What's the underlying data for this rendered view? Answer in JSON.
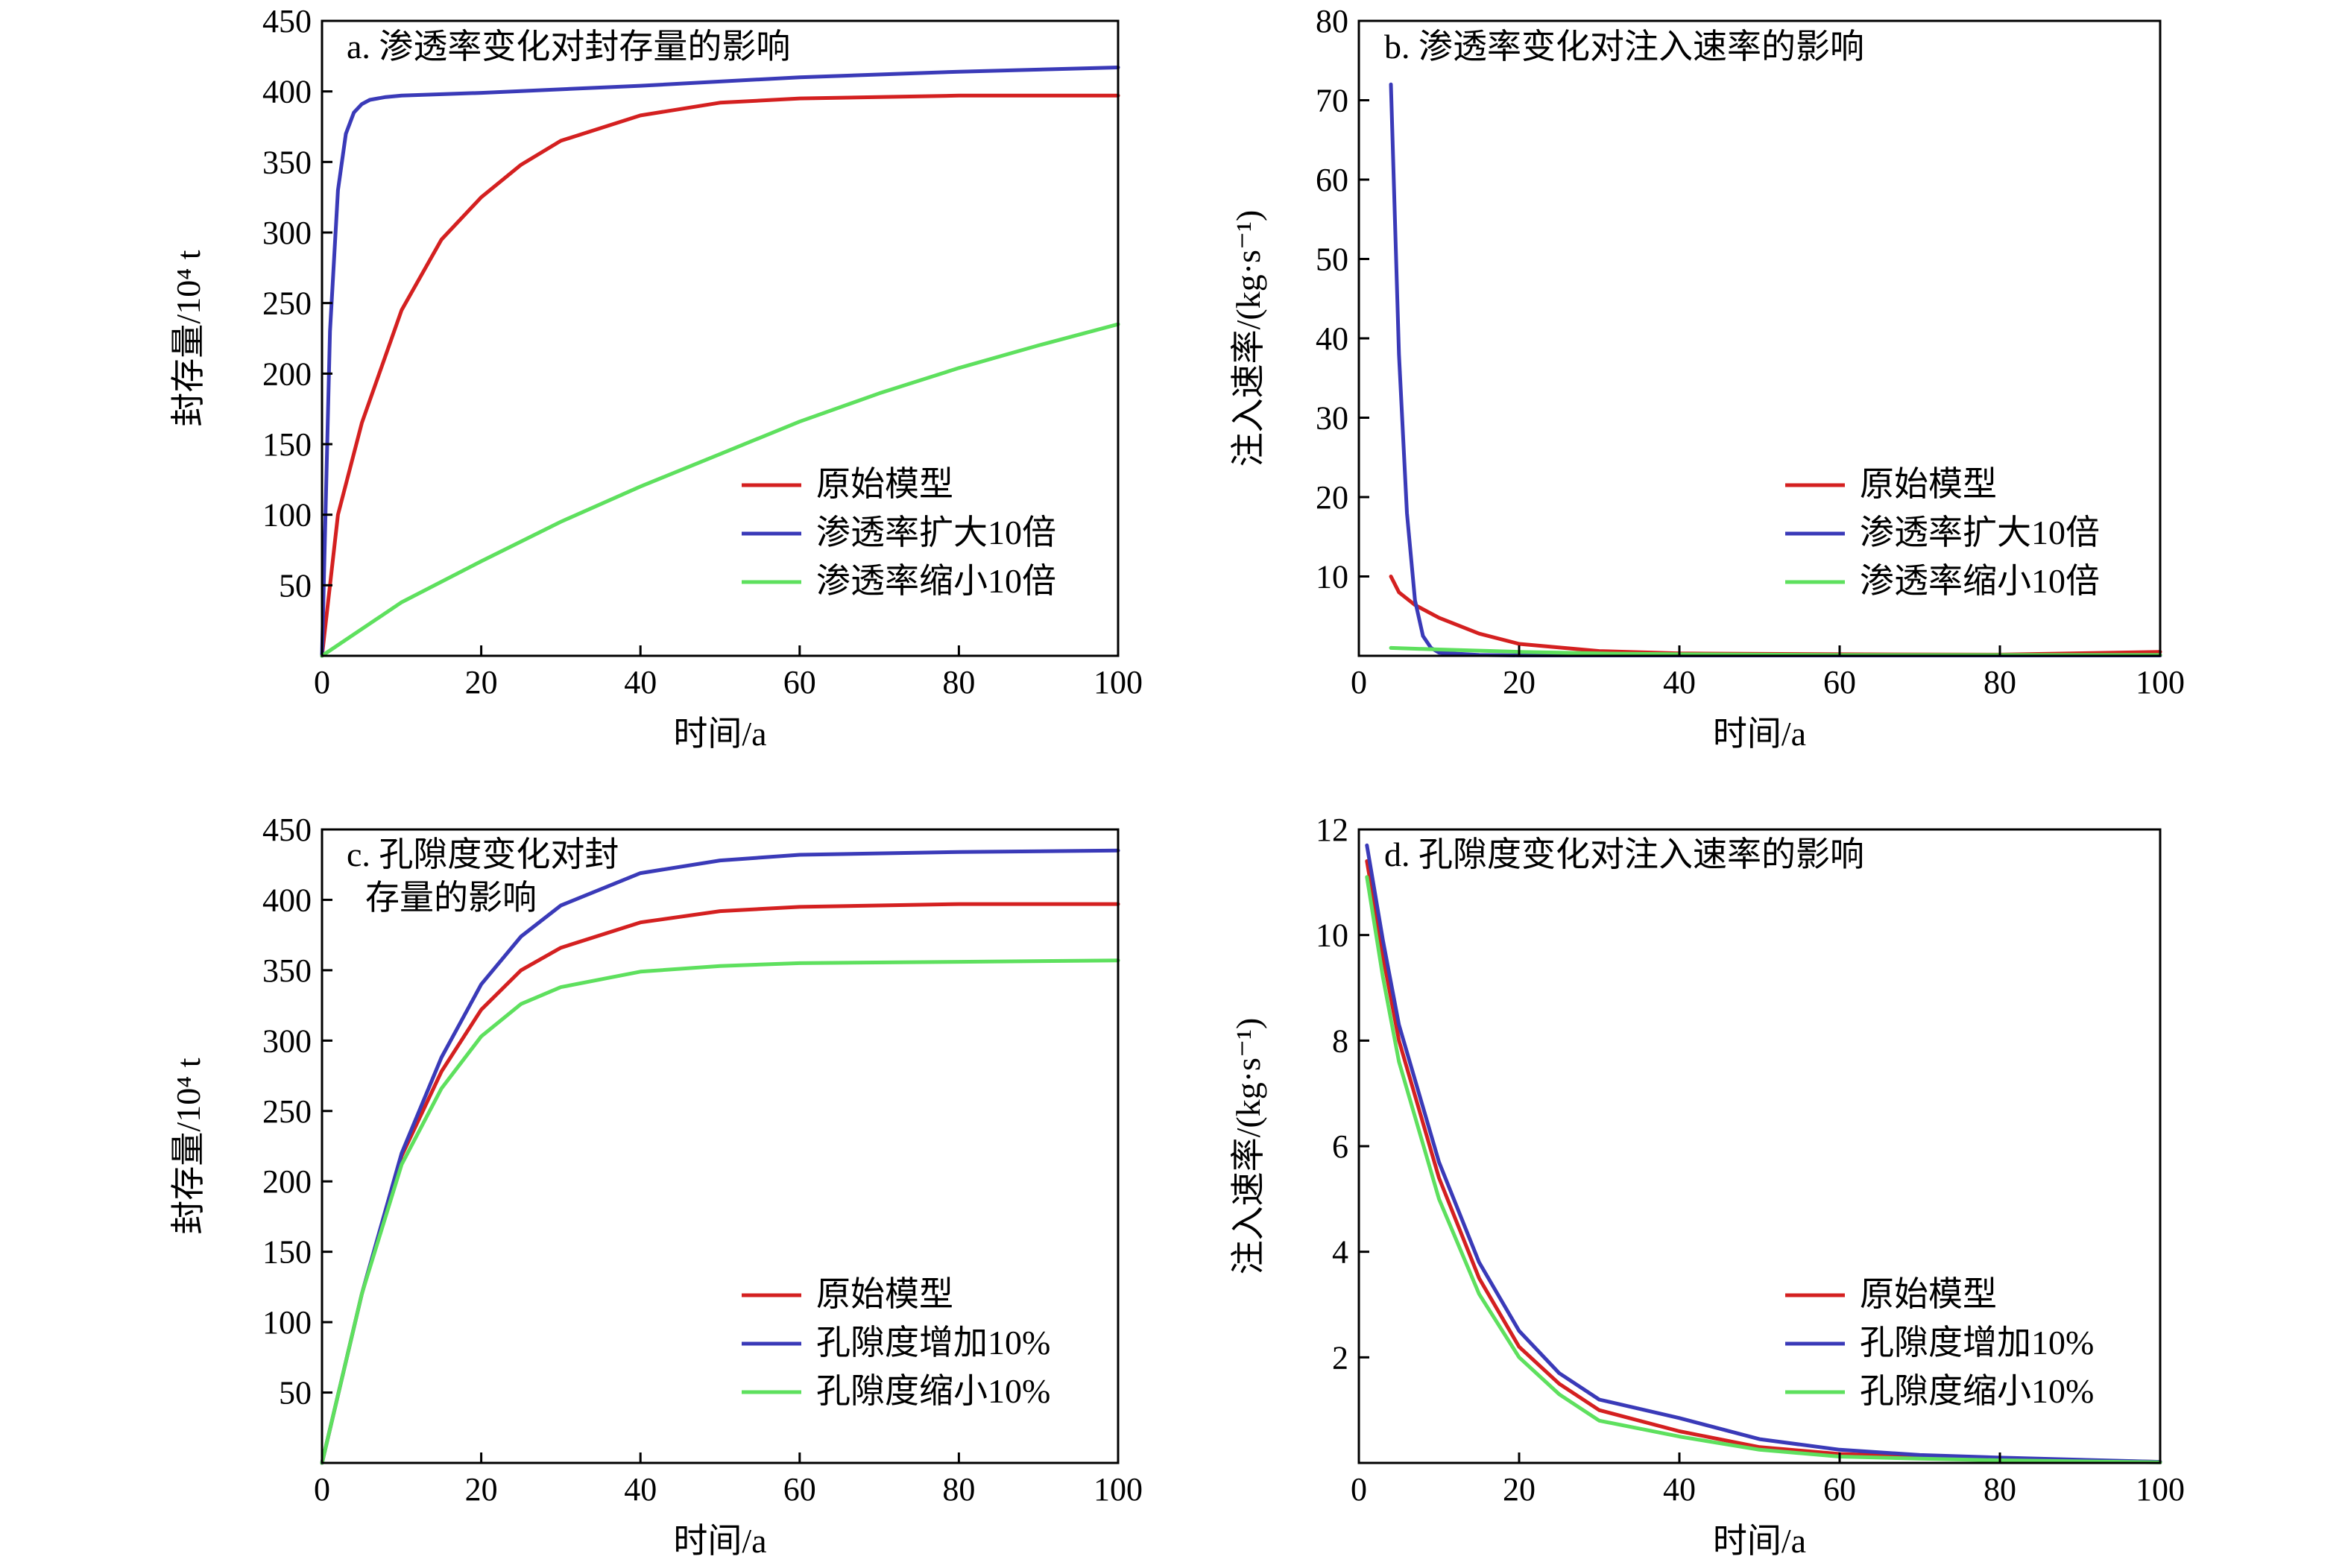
{
  "colors": {
    "original": "#d42020",
    "increase": "#3a3ab8",
    "decrease": "#5ee05e"
  },
  "chart_data": [
    {
      "type": "line",
      "title": "a. 渗透率变化对封存量的影响",
      "xlabel": "时间/a",
      "ylabel": "封存量/10⁴ t",
      "xlim": [
        0,
        100
      ],
      "ylim": [
        0,
        450
      ],
      "xticks": [
        0,
        20,
        40,
        60,
        80,
        100
      ],
      "yticks": [
        50,
        100,
        150,
        200,
        250,
        300,
        350,
        400,
        450
      ],
      "legend_position": "lower-right",
      "series": [
        {
          "name": "原始模型",
          "color": "#d42020",
          "x": [
            0,
            2,
            5,
            10,
            15,
            20,
            25,
            30,
            40,
            50,
            60,
            80,
            100
          ],
          "y": [
            0,
            100,
            165,
            245,
            295,
            325,
            348,
            365,
            383,
            392,
            395,
            397,
            397
          ]
        },
        {
          "name": "渗透率扩大10倍",
          "color": "#3a3ab8",
          "x": [
            0,
            1,
            2,
            3,
            4,
            5,
            6,
            8,
            10,
            20,
            40,
            60,
            80,
            100
          ],
          "y": [
            0,
            230,
            330,
            370,
            385,
            391,
            394,
            396,
            397,
            399,
            404,
            410,
            414,
            417
          ]
        },
        {
          "name": "渗透率缩小10倍",
          "color": "#5ee05e",
          "x": [
            0,
            10,
            20,
            30,
            40,
            50,
            60,
            70,
            80,
            90,
            100
          ],
          "y": [
            0,
            38,
            67,
            95,
            120,
            143,
            166,
            186,
            204,
            220,
            235
          ]
        }
      ]
    },
    {
      "type": "line",
      "title": "b. 渗透率变化对注入速率的影响",
      "xlabel": "时间/a",
      "ylabel": "注入速率/(kg·s⁻¹)",
      "xlim": [
        0,
        100
      ],
      "ylim": [
        0,
        80
      ],
      "xticks": [
        0,
        20,
        40,
        60,
        80,
        100
      ],
      "yticks": [
        10,
        20,
        30,
        40,
        50,
        60,
        70,
        80
      ],
      "legend_position": "lower-right",
      "series": [
        {
          "name": "原始模型",
          "color": "#d42020",
          "x": [
            4,
            5,
            7,
            10,
            15,
            20,
            30,
            40,
            60,
            80,
            100
          ],
          "y": [
            10,
            8,
            6.4,
            4.8,
            2.8,
            1.5,
            0.6,
            0.3,
            0.2,
            0.15,
            0.5
          ]
        },
        {
          "name": "渗透率扩大10倍",
          "color": "#3a3ab8",
          "x": [
            4,
            4.5,
            5,
            6,
            7,
            8,
            9,
            10,
            15,
            20,
            100
          ],
          "y": [
            72,
            55,
            38,
            18,
            7,
            2.5,
            1,
            0.4,
            0.1,
            0.05,
            0.05
          ]
        },
        {
          "name": "渗透率缩小10倍",
          "color": "#5ee05e",
          "x": [
            4,
            10,
            20,
            30,
            40,
            60,
            80,
            100
          ],
          "y": [
            1.0,
            0.8,
            0.5,
            0.3,
            0.2,
            0.1,
            0.1,
            0.1
          ]
        }
      ]
    },
    {
      "type": "line",
      "title": "c. 孔隙度变化对封",
      "title_line2": "存量的影响",
      "xlabel": "时间/a",
      "ylabel": "封存量/10⁴ t",
      "xlim": [
        0,
        100
      ],
      "ylim": [
        0,
        450
      ],
      "xticks": [
        0,
        20,
        40,
        60,
        80,
        100
      ],
      "yticks": [
        50,
        100,
        150,
        200,
        250,
        300,
        350,
        400,
        450
      ],
      "legend_position": "lower-right",
      "series": [
        {
          "name": "原始模型",
          "color": "#d42020",
          "x": [
            0,
            5,
            10,
            15,
            20,
            25,
            30,
            40,
            50,
            60,
            80,
            100
          ],
          "y": [
            0,
            120,
            218,
            278,
            322,
            350,
            366,
            384,
            392,
            395,
            397,
            397
          ]
        },
        {
          "name": "孔隙度增加10%",
          "color": "#3a3ab8",
          "x": [
            0,
            5,
            10,
            15,
            20,
            25,
            30,
            40,
            50,
            60,
            80,
            100
          ],
          "y": [
            0,
            120,
            220,
            288,
            340,
            374,
            396,
            419,
            428,
            432,
            434,
            435
          ]
        },
        {
          "name": "孔隙度缩小10%",
          "color": "#5ee05e",
          "x": [
            0,
            5,
            10,
            15,
            20,
            25,
            30,
            40,
            50,
            60,
            80,
            100
          ],
          "y": [
            0,
            120,
            212,
            266,
            303,
            326,
            338,
            349,
            353,
            355,
            356,
            357
          ]
        }
      ]
    },
    {
      "type": "line",
      "title": "d. 孔隙度变化对注入速率的影响",
      "xlabel": "时间/a",
      "ylabel": "注入速率/(kg·s⁻¹)",
      "xlim": [
        0,
        100
      ],
      "ylim": [
        0,
        12
      ],
      "xticks": [
        0,
        20,
        40,
        60,
        80,
        100
      ],
      "yticks": [
        2,
        4,
        6,
        8,
        10,
        12
      ],
      "legend_position": "lower-right",
      "series": [
        {
          "name": "原始模型",
          "color": "#d42020",
          "x": [
            1,
            3,
            5,
            10,
            15,
            20,
            25,
            30,
            40,
            50,
            60,
            70,
            80,
            100
          ],
          "y": [
            11.4,
            9.6,
            8.0,
            5.4,
            3.5,
            2.2,
            1.5,
            1.0,
            0.6,
            0.3,
            0.17,
            0.12,
            0.08,
            0.02
          ]
        },
        {
          "name": "孔隙度增加10%",
          "color": "#3a3ab8",
          "x": [
            1,
            3,
            5,
            10,
            15,
            20,
            25,
            30,
            40,
            50,
            60,
            70,
            80,
            100
          ],
          "y": [
            11.7,
            9.9,
            8.3,
            5.7,
            3.8,
            2.5,
            1.7,
            1.2,
            0.85,
            0.45,
            0.25,
            0.15,
            0.1,
            0.02
          ]
        },
        {
          "name": "孔隙度缩小10%",
          "color": "#5ee05e",
          "x": [
            1,
            3,
            5,
            10,
            15,
            20,
            25,
            30,
            40,
            50,
            60,
            70,
            80,
            100
          ],
          "y": [
            11.1,
            9.2,
            7.6,
            5.0,
            3.2,
            2.0,
            1.3,
            0.8,
            0.5,
            0.25,
            0.12,
            0.08,
            0.05,
            0.01
          ]
        }
      ]
    }
  ]
}
